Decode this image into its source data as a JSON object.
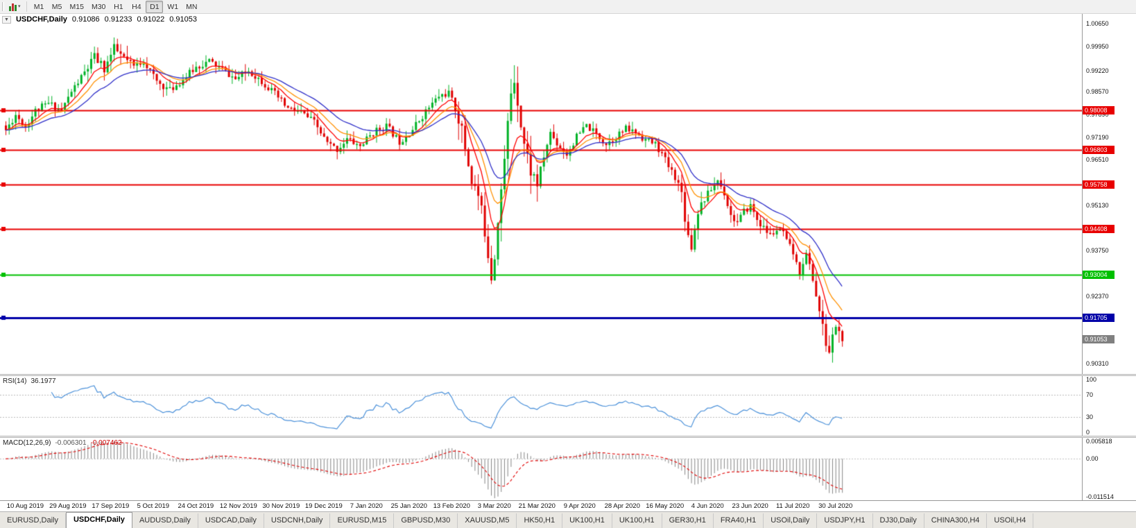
{
  "toolbar": {
    "chart_button_caret": "▾",
    "timeframes": [
      {
        "label": "M1",
        "active": false
      },
      {
        "label": "M5",
        "active": false
      },
      {
        "label": "M15",
        "active": false
      },
      {
        "label": "M30",
        "active": false
      },
      {
        "label": "H1",
        "active": false
      },
      {
        "label": "H4",
        "active": false
      },
      {
        "label": "D1",
        "active": true
      },
      {
        "label": "W1",
        "active": false
      },
      {
        "label": "MN",
        "active": false
      }
    ]
  },
  "chart": {
    "collapse_icon": "▼",
    "title": "USDCHF,Daily",
    "ohlc": {
      "open": "0.91086",
      "high": "0.91233",
      "low": "0.91022",
      "close": "0.91053"
    }
  },
  "price_axis": {
    "ticks": [
      {
        "v": 1.0065,
        "label": "1.00650"
      },
      {
        "v": 0.9995,
        "label": "0.99950"
      },
      {
        "v": 0.9922,
        "label": "0.99220"
      },
      {
        "v": 0.9857,
        "label": "0.98570"
      },
      {
        "v": 0.9789,
        "label": "0.97890"
      },
      {
        "v": 0.9719,
        "label": "0.97190"
      },
      {
        "v": 0.9651,
        "label": "0.96510"
      },
      {
        "v": 0.9513,
        "label": "0.95130"
      },
      {
        "v": 0.9375,
        "label": "0.93750"
      },
      {
        "v": 0.9237,
        "label": "0.92370"
      },
      {
        "v": 0.9031,
        "label": "0.90310"
      }
    ]
  },
  "hlines": [
    {
      "value": 0.98008,
      "label": "0.98008",
      "color": "#e80000",
      "width": 2
    },
    {
      "value": 0.96803,
      "label": "0.96803",
      "color": "#e80000",
      "width": 2
    },
    {
      "value": 0.95758,
      "label": "0.95758",
      "color": "#e80000",
      "width": 2
    },
    {
      "value": 0.94408,
      "label": "0.94408",
      "color": "#e80000",
      "width": 2
    },
    {
      "value": 0.93004,
      "label": "0.93004",
      "color": "#00c000",
      "width": 2
    },
    {
      "value": 0.91705,
      "label": "0.91705",
      "color": "#0000a8",
      "width": 3
    }
  ],
  "current_price": {
    "value": 0.91053,
    "label": "0.91053",
    "color": "#808080"
  },
  "indicators": {
    "rsi": {
      "name": "RSI(14)",
      "value": "36.1977",
      "line_color": "#4a90d9",
      "levels": [
        {
          "v": 100,
          "label": "100"
        },
        {
          "v": 70,
          "label": "70"
        },
        {
          "v": 30,
          "label": "30"
        },
        {
          "v": 0,
          "label": "0"
        }
      ],
      "dotted_levels": [
        70,
        30
      ]
    },
    "macd": {
      "name": "MACD(12,26,9)",
      "main_value": "-0.006301",
      "signal_value": "-0.007462",
      "hist_color": "#848484",
      "signal_color": "#e00000",
      "scale_top": 0.005818,
      "scale_bottom": -0.011514,
      "axis_labels": [
        {
          "v": 0.005818,
          "label": "0.005818"
        },
        {
          "v": 0,
          "label": "0.00"
        },
        {
          "v": -0.011514,
          "label": "-0.011514"
        }
      ]
    }
  },
  "date_axis": {
    "first_index": 6,
    "step": 13,
    "labels": [
      "10 Aug 2019",
      "29 Aug 2019",
      "17 Sep 2019",
      "5 Oct 2019",
      "24 Oct 2019",
      "12 Nov 2019",
      "30 Nov 2019",
      "19 Dec 2019",
      "7 Jan 2020",
      "25 Jan 2020",
      "13 Feb 2020",
      "3 Mar 2020",
      "21 Mar 2020",
      "9 Apr 2020",
      "28 Apr 2020",
      "16 May 2020",
      "4 Jun 2020",
      "23 Jun 2020",
      "11 Jul 2020",
      "30 Jul 2020"
    ]
  },
  "tabs": [
    {
      "label": "EURUSD,Daily",
      "active": false
    },
    {
      "label": "USDCHF,Daily",
      "active": true
    },
    {
      "label": "AUDUSD,Daily",
      "active": false
    },
    {
      "label": "USDCAD,Daily",
      "active": false
    },
    {
      "label": "USDCNH,Daily",
      "active": false
    },
    {
      "label": "EURUSD,M15",
      "active": false
    },
    {
      "label": "GBPUSD,M30",
      "active": false
    },
    {
      "label": "XAUUSD,M5",
      "active": false
    },
    {
      "label": "HK50,H1",
      "active": false
    },
    {
      "label": "UK100,H1",
      "active": false
    },
    {
      "label": "UK100,H1",
      "active": false
    },
    {
      "label": "GER30,H1",
      "active": false
    },
    {
      "label": "FRA40,H1",
      "active": false
    },
    {
      "label": "USOil,Daily",
      "active": false
    },
    {
      "label": "USDJPY,H1",
      "active": false
    },
    {
      "label": "DJ30,Daily",
      "active": false
    },
    {
      "label": "CHINA300,H4",
      "active": false
    },
    {
      "label": "USOil,H4",
      "active": false
    }
  ],
  "chart_data": {
    "type": "candlestick",
    "symbol": "USDCHF",
    "timeframe": "Daily",
    "n": 256,
    "seed": 11,
    "y_range": [
      0.9,
      1.0094
    ],
    "up_color": "#00b226",
    "down_color": "#e00000",
    "keypoints": [
      [
        0,
        0.974
      ],
      [
        3,
        0.9788
      ],
      [
        6,
        0.9752
      ],
      [
        9,
        0.98
      ],
      [
        13,
        0.9822
      ],
      [
        17,
        0.9802
      ],
      [
        20,
        0.9858
      ],
      [
        24,
        0.9915
      ],
      [
        27,
        0.9962
      ],
      [
        30,
        0.9928
      ],
      [
        33,
        0.9988
      ],
      [
        36,
        0.9958
      ],
      [
        39,
        0.9932
      ],
      [
        42,
        0.9952
      ],
      [
        46,
        0.9888
      ],
      [
        50,
        0.9862
      ],
      [
        54,
        0.9895
      ],
      [
        58,
        0.9932
      ],
      [
        62,
        0.995
      ],
      [
        66,
        0.9925
      ],
      [
        70,
        0.9895
      ],
      [
        74,
        0.9922
      ],
      [
        78,
        0.989
      ],
      [
        82,
        0.985
      ],
      [
        86,
        0.9806
      ],
      [
        90,
        0.9795
      ],
      [
        94,
        0.9764
      ],
      [
        98,
        0.97
      ],
      [
        101,
        0.9682
      ],
      [
        104,
        0.9714
      ],
      [
        108,
        0.9692
      ],
      [
        112,
        0.9734
      ],
      [
        116,
        0.9754
      ],
      [
        120,
        0.9706
      ],
      [
        124,
        0.9744
      ],
      [
        128,
        0.9798
      ],
      [
        132,
        0.9844
      ],
      [
        135,
        0.9854
      ],
      [
        138,
        0.978
      ],
      [
        140,
        0.9688
      ],
      [
        142,
        0.959
      ],
      [
        144,
        0.954
      ],
      [
        146,
        0.9438
      ],
      [
        148,
        0.9302
      ],
      [
        149,
        0.9362
      ],
      [
        150,
        0.948
      ],
      [
        151,
        0.956
      ],
      [
        152,
        0.9642
      ],
      [
        153,
        0.976
      ],
      [
        154,
        0.9858
      ],
      [
        155,
        0.9898
      ],
      [
        156,
        0.9838
      ],
      [
        157,
        0.9762
      ],
      [
        158,
        0.97
      ],
      [
        160,
        0.9618
      ],
      [
        162,
        0.958
      ],
      [
        164,
        0.966
      ],
      [
        166,
        0.9734
      ],
      [
        168,
        0.97
      ],
      [
        171,
        0.9668
      ],
      [
        174,
        0.972
      ],
      [
        177,
        0.9754
      ],
      [
        180,
        0.9728
      ],
      [
        183,
        0.97
      ],
      [
        186,
        0.9722
      ],
      [
        189,
        0.9744
      ],
      [
        192,
        0.9734
      ],
      [
        195,
        0.9712
      ],
      [
        198,
        0.9698
      ],
      [
        200,
        0.9668
      ],
      [
        202,
        0.963
      ],
      [
        204,
        0.96
      ],
      [
        206,
        0.955
      ],
      [
        207,
        0.948
      ],
      [
        208,
        0.942
      ],
      [
        209,
        0.939
      ],
      [
        210,
        0.944
      ],
      [
        211,
        0.95
      ],
      [
        213,
        0.9532
      ],
      [
        215,
        0.9562
      ],
      [
        217,
        0.959
      ],
      [
        219,
        0.955
      ],
      [
        221,
        0.9482
      ],
      [
        223,
        0.946
      ],
      [
        225,
        0.9492
      ],
      [
        227,
        0.9512
      ],
      [
        229,
        0.947
      ],
      [
        231,
        0.9442
      ],
      [
        233,
        0.9422
      ],
      [
        235,
        0.9436
      ],
      [
        237,
        0.943
      ],
      [
        238,
        0.94
      ],
      [
        240,
        0.9368
      ],
      [
        241,
        0.933
      ],
      [
        242,
        0.931
      ],
      [
        243,
        0.9342
      ],
      [
        244,
        0.9362
      ],
      [
        245,
        0.933
      ],
      [
        246,
        0.929
      ],
      [
        247,
        0.924
      ],
      [
        248,
        0.919
      ],
      [
        249,
        0.914
      ],
      [
        250,
        0.9092
      ],
      [
        251,
        0.9066
      ],
      [
        252,
        0.9112
      ],
      [
        253,
        0.915
      ],
      [
        254,
        0.9124
      ],
      [
        255,
        0.9105
      ]
    ],
    "volatility_zones": [
      [
        24,
        40,
        1.4
      ],
      [
        138,
        162,
        2.4
      ],
      [
        205,
        212,
        1.6
      ],
      [
        246,
        256,
        1.5
      ]
    ],
    "mas": [
      {
        "period": 8,
        "color": "#ff0000"
      },
      {
        "period": 14,
        "color": "#ff9000"
      },
      {
        "period": 25,
        "color": "#2f2fc8"
      }
    ]
  }
}
